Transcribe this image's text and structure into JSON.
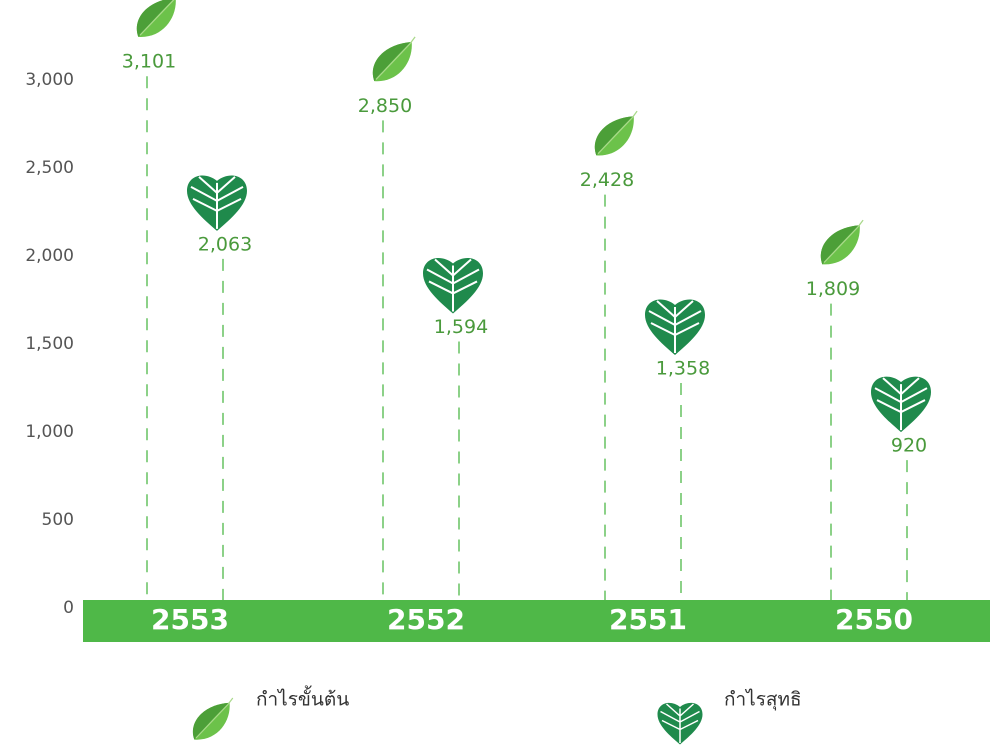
{
  "chart_data": {
    "type": "leaf-bar",
    "categories": [
      "2553",
      "2552",
      "2551",
      "2550"
    ],
    "series": [
      {
        "name": "กำไรขั้นต้น",
        "color": "#5bb847",
        "values": [
          3101,
          2850,
          2428,
          1809
        ],
        "value_labels": [
          "3,101",
          "2,850",
          "2,428",
          "1,809"
        ]
      },
      {
        "name": "กำไรสุทธิ",
        "color": "#1f8a4c",
        "values": [
          2063,
          1594,
          1358,
          920
        ],
        "value_labels": [
          "2,063",
          "1,594",
          "1,358",
          "920"
        ]
      }
    ],
    "ylim": [
      0,
      3000
    ],
    "yticks": [
      0,
      500,
      {
        "value": 1000,
        "label": "1,000"
      },
      {
        "value": 1500,
        "label": "1,500"
      },
      {
        "value": 2000,
        "label": "2,000"
      },
      {
        "value": 2500,
        "label": "2,500"
      },
      {
        "value": 3000,
        "label": "3,000"
      }
    ],
    "axis_bar_color": "#4fb848",
    "line_color": "#4fb848"
  }
}
